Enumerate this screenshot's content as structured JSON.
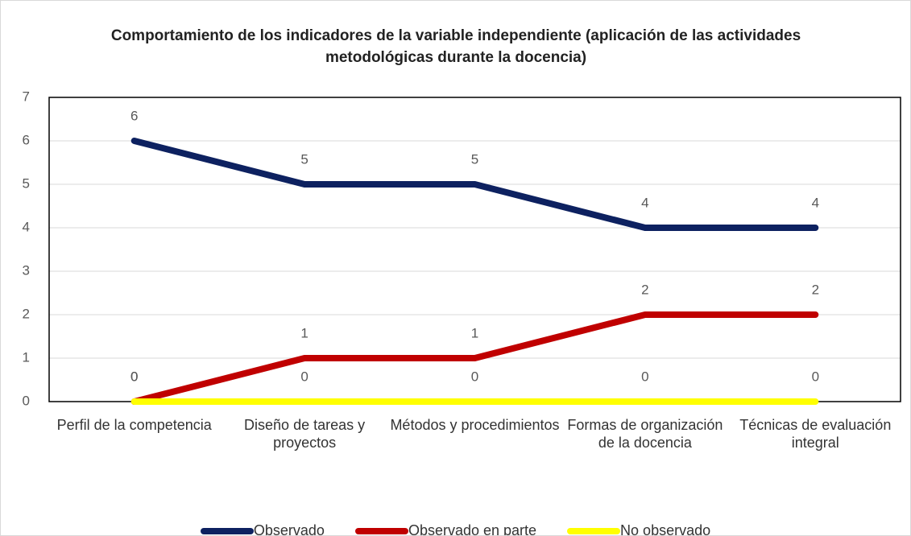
{
  "chart_data": {
    "type": "line",
    "title": "Comportamiento de los indicadores de la variable independiente (aplicación de las actividades metodológicas durante la docencia)",
    "categories": [
      "Perfil de la competencia",
      "Diseño de tareas y proyectos",
      "Métodos y procedimientos",
      "Formas de organización de la docencia",
      "Técnicas de evaluación integral"
    ],
    "series": [
      {
        "name": "Observado",
        "color": "#0d2160",
        "values": [
          6,
          5,
          5,
          4,
          4
        ]
      },
      {
        "name": "Observado en parte",
        "color": "#c00000",
        "values": [
          0,
          1,
          1,
          2,
          2
        ]
      },
      {
        "name": "No observado",
        "color": "#ffff00",
        "values": [
          0,
          0,
          0,
          0,
          0
        ]
      }
    ],
    "ylim": [
      0,
      7
    ],
    "yticks": [
      0,
      1,
      2,
      3,
      4,
      5,
      6,
      7
    ],
    "grid": true,
    "legend": "bottom"
  }
}
